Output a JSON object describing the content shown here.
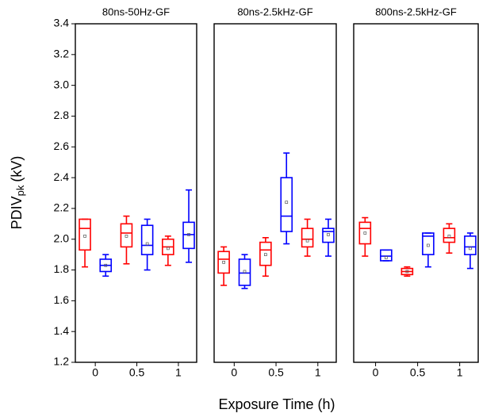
{
  "chart_data": [
    {
      "type": "box",
      "title": "80ns-50Hz-GF",
      "ylabel": "PDIV",
      "ylabel_sub": "pk",
      "ylabel_unit": "(kV)",
      "xlabel": "Exposure Time (h)",
      "xlim": [
        -0.24,
        1.22
      ],
      "xticks": [
        0,
        0.5,
        1
      ],
      "ylim": [
        1.2,
        3.4
      ],
      "yticks": [
        1.2,
        1.4,
        1.6,
        1.8,
        {
          "value": 2,
          "label": "2.0"
        },
        2.2,
        2.4,
        2.6,
        2.8,
        {
          "value": 3,
          "label": "3.0"
        },
        3.2,
        3.4
      ],
      "boxes": [
        {
          "x": -0.125,
          "color": "#ff0000",
          "whislo": 1.82,
          "q1": 1.93,
          "med": 2.07,
          "q3": 2.13,
          "whishi": 2.13,
          "mean": 2.02
        },
        {
          "x": 0.125,
          "color": "#0000ff",
          "whislo": 1.76,
          "q1": 1.79,
          "med": 1.83,
          "q3": 1.87,
          "whishi": 1.9,
          "mean": 1.83
        },
        {
          "x": 0.375,
          "color": "#ff0000",
          "whislo": 1.84,
          "q1": 1.95,
          "med": 2.04,
          "q3": 2.1,
          "whishi": 2.15,
          "mean": 2.02
        },
        {
          "x": 0.625,
          "color": "#0000ff",
          "whislo": 1.8,
          "q1": 1.9,
          "med": 1.96,
          "q3": 2.09,
          "whishi": 2.13,
          "mean": 1.97
        },
        {
          "x": 0.875,
          "color": "#ff0000",
          "whislo": 1.83,
          "q1": 1.9,
          "med": 1.95,
          "q3": 2.0,
          "whishi": 2.02,
          "mean": 1.94
        },
        {
          "x": 1.125,
          "color": "#0000ff",
          "whislo": 1.85,
          "q1": 1.94,
          "med": 2.03,
          "q3": 2.11,
          "whishi": 2.32,
          "mean": 2.03
        }
      ]
    },
    {
      "type": "box",
      "title": "80ns-2.5kHz-GF",
      "xlim": [
        -0.24,
        1.22
      ],
      "xticks": [
        0,
        0.5,
        1
      ],
      "ylim": [
        1.2,
        3.4
      ],
      "boxes": [
        {
          "x": -0.125,
          "color": "#ff0000",
          "whislo": 1.7,
          "q1": 1.78,
          "med": 1.87,
          "q3": 1.92,
          "whishi": 1.95,
          "mean": 1.85
        },
        {
          "x": 0.125,
          "color": "#0000ff",
          "whislo": 1.68,
          "q1": 1.7,
          "med": 1.78,
          "q3": 1.87,
          "whishi": 1.9,
          "mean": 1.79
        },
        {
          "x": 0.375,
          "color": "#ff0000",
          "whislo": 1.76,
          "q1": 1.83,
          "med": 1.93,
          "q3": 1.98,
          "whishi": 2.01,
          "mean": 1.9
        },
        {
          "x": 0.625,
          "color": "#0000ff",
          "whislo": 1.97,
          "q1": 2.05,
          "med": 2.15,
          "q3": 2.4,
          "whishi": 2.56,
          "mean": 2.24
        },
        {
          "x": 0.875,
          "color": "#ff0000",
          "whislo": 1.89,
          "q1": 1.95,
          "med": 2.0,
          "q3": 2.07,
          "whishi": 2.13,
          "mean": 1.99
        },
        {
          "x": 1.125,
          "color": "#0000ff",
          "whislo": 1.89,
          "q1": 1.98,
          "med": 2.05,
          "q3": 2.07,
          "whishi": 2.13,
          "mean": 2.03
        }
      ]
    },
    {
      "type": "box",
      "title": "800ns-2.5kHz-GF",
      "xlim": [
        -0.26,
        1.22
      ],
      "xticks": [
        0,
        0.5,
        1
      ],
      "ylim": [
        1.2,
        3.4
      ],
      "boxes": [
        {
          "x": -0.125,
          "color": "#ff0000",
          "whislo": 1.89,
          "q1": 1.97,
          "med": 2.07,
          "q3": 2.11,
          "whishi": 2.14,
          "mean": 2.04
        },
        {
          "x": 0.125,
          "color": "#0000ff",
          "whislo": 1.86,
          "q1": 1.86,
          "med": 1.89,
          "q3": 1.93,
          "whishi": 1.93,
          "mean": 1.88
        },
        {
          "x": 0.375,
          "color": "#ff0000",
          "whislo": 1.76,
          "q1": 1.77,
          "med": 1.79,
          "q3": 1.81,
          "whishi": 1.82,
          "mean": 1.79
        },
        {
          "x": 0.625,
          "color": "#0000ff",
          "whislo": 1.82,
          "q1": 1.9,
          "med": 2.02,
          "q3": 2.04,
          "whishi": 2.04,
          "mean": 1.96
        },
        {
          "x": 0.875,
          "color": "#ff0000",
          "whislo": 1.91,
          "q1": 1.98,
          "med": 2.01,
          "q3": 2.07,
          "whishi": 2.1,
          "mean": 2.02
        },
        {
          "x": 1.125,
          "color": "#0000ff",
          "whislo": 1.81,
          "q1": 1.9,
          "med": 1.95,
          "q3": 2.02,
          "whishi": 2.04,
          "mean": 1.94
        }
      ]
    }
  ]
}
